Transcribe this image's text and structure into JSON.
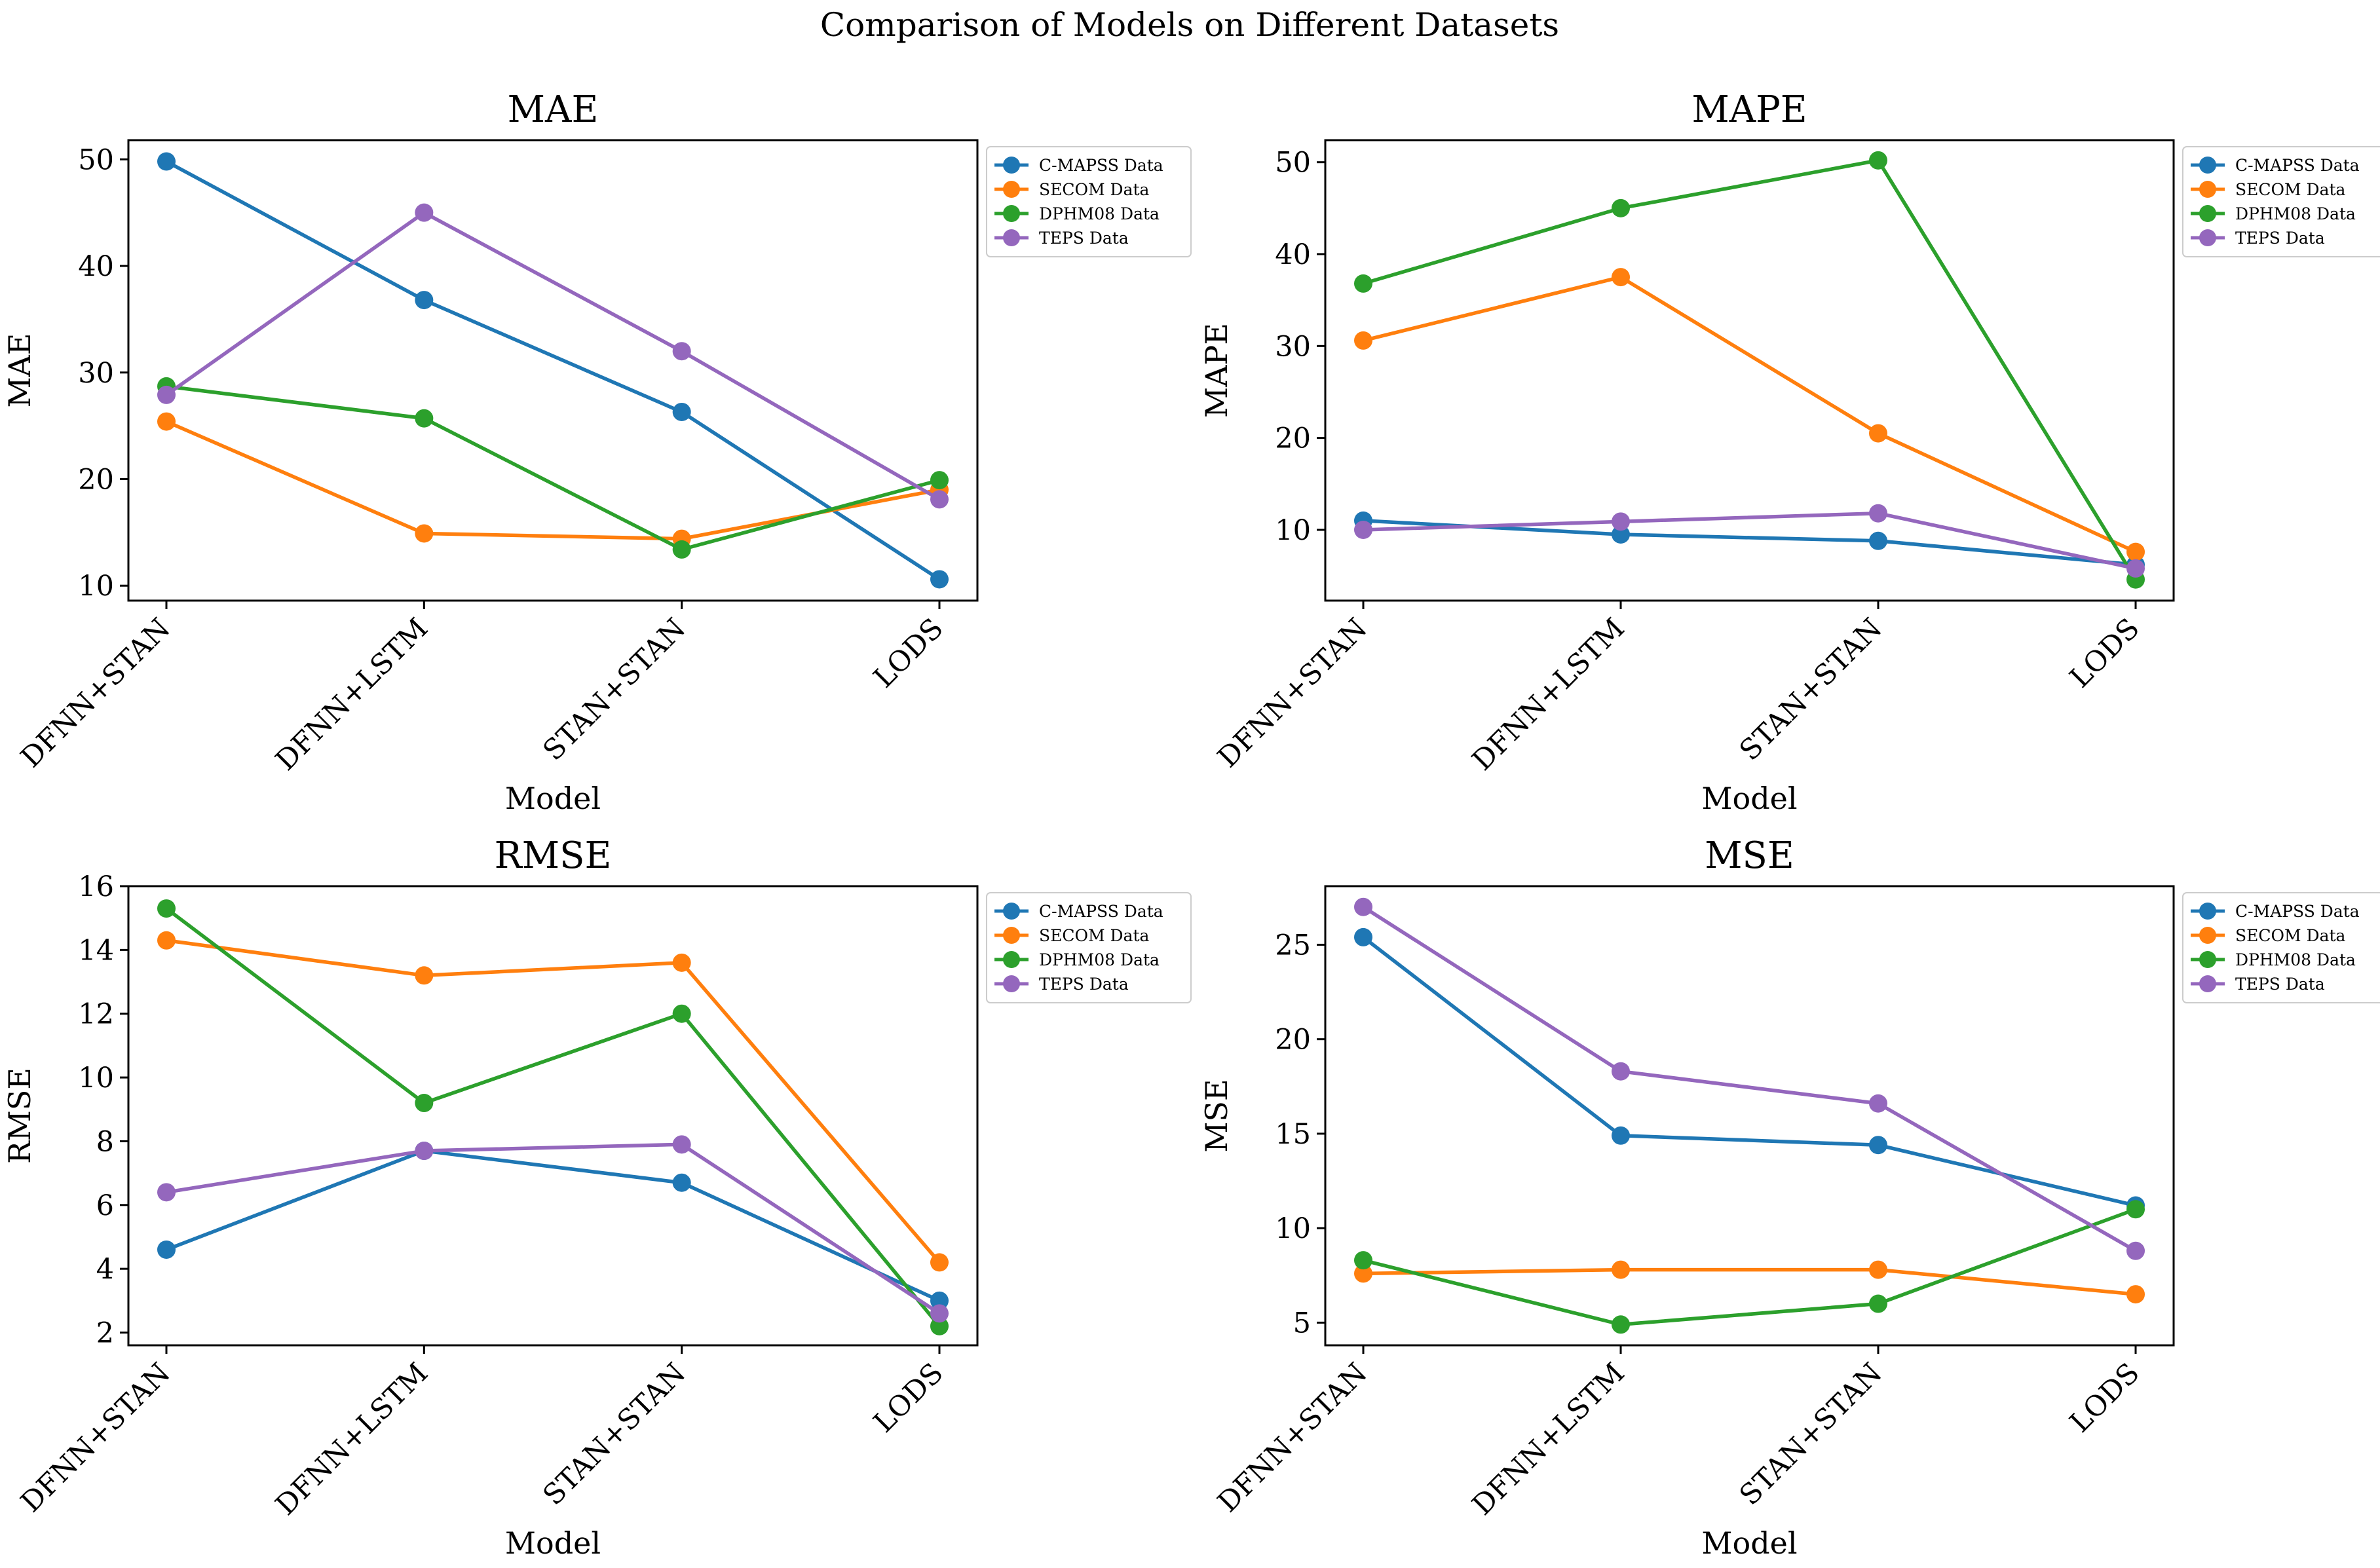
{
  "figure_title": "Comparison of Models on Different Datasets",
  "colors": {
    "C-MAPSS Data": "#1f77b4",
    "SECOM Data": "#ff7f0e",
    "DPHM08 Data": "#2ca02c",
    "TEPS Data": "#9467bd"
  },
  "chart_data": [
    {
      "type": "line",
      "title": "MAE",
      "xlabel": "Model",
      "ylabel": "MAE",
      "categories": [
        "DFNN+STAN",
        "DFNN+LSTM",
        "STAN+STAN",
        "LODS"
      ],
      "ylim": [
        8.6,
        51.8
      ],
      "yticks": [
        10,
        20,
        30,
        40,
        50
      ],
      "legend_position": "outside-upper-right",
      "series": [
        {
          "name": "C-MAPSS Data",
          "values": [
            49.8,
            36.8,
            26.3,
            10.6
          ]
        },
        {
          "name": "SECOM Data",
          "values": [
            25.4,
            14.9,
            14.4,
            19.0
          ]
        },
        {
          "name": "DPHM08 Data",
          "values": [
            28.7,
            25.7,
            13.4,
            19.9
          ]
        },
        {
          "name": "TEPS Data",
          "values": [
            27.9,
            45.0,
            32.0,
            18.1
          ]
        }
      ]
    },
    {
      "type": "line",
      "title": "MAPE",
      "xlabel": "Model",
      "ylabel": "MAPE",
      "categories": [
        "DFNN+STAN",
        "DFNN+LSTM",
        "STAN+STAN",
        "LODS"
      ],
      "ylim": [
        2.3,
        52.4
      ],
      "yticks": [
        10,
        20,
        30,
        40,
        50
      ],
      "legend_position": "outside-upper-right",
      "series": [
        {
          "name": "C-MAPSS Data",
          "values": [
            11.0,
            9.5,
            8.8,
            6.2
          ]
        },
        {
          "name": "SECOM Data",
          "values": [
            30.6,
            37.5,
            20.5,
            7.6
          ]
        },
        {
          "name": "DPHM08 Data",
          "values": [
            36.8,
            45.0,
            50.2,
            4.6
          ]
        },
        {
          "name": "TEPS Data",
          "values": [
            10.0,
            10.9,
            11.8,
            5.8
          ]
        }
      ]
    },
    {
      "type": "line",
      "title": "RMSE",
      "xlabel": "Model",
      "ylabel": "RMSE",
      "categories": [
        "DFNN+STAN",
        "DFNN+LSTM",
        "STAN+STAN",
        "LODS"
      ],
      "ylim": [
        1.6,
        16.0
      ],
      "yticks": [
        2,
        4,
        6,
        8,
        10,
        12,
        14,
        16
      ],
      "legend_position": "outside-upper-right",
      "series": [
        {
          "name": "C-MAPSS Data",
          "values": [
            4.6,
            7.7,
            6.7,
            3.0
          ]
        },
        {
          "name": "SECOM Data",
          "values": [
            14.3,
            13.2,
            13.6,
            4.2
          ]
        },
        {
          "name": "DPHM08 Data",
          "values": [
            15.3,
            9.2,
            12.0,
            2.2
          ]
        },
        {
          "name": "TEPS Data",
          "values": [
            6.4,
            7.7,
            7.9,
            2.6
          ]
        }
      ]
    },
    {
      "type": "line",
      "title": "MSE",
      "xlabel": "Model",
      "ylabel": "MSE",
      "categories": [
        "DFNN+STAN",
        "DFNN+LSTM",
        "STAN+STAN",
        "LODS"
      ],
      "ylim": [
        3.8,
        28.1
      ],
      "yticks": [
        5,
        10,
        15,
        20,
        25
      ],
      "legend_position": "outside-upper-right",
      "series": [
        {
          "name": "C-MAPSS Data",
          "values": [
            25.4,
            14.9,
            14.4,
            11.2
          ]
        },
        {
          "name": "SECOM Data",
          "values": [
            7.6,
            7.8,
            7.8,
            6.5
          ]
        },
        {
          "name": "DPHM08 Data",
          "values": [
            8.3,
            4.9,
            6.0,
            11.0
          ]
        },
        {
          "name": "TEPS Data",
          "values": [
            27.0,
            18.3,
            16.6,
            8.8
          ]
        }
      ]
    }
  ]
}
